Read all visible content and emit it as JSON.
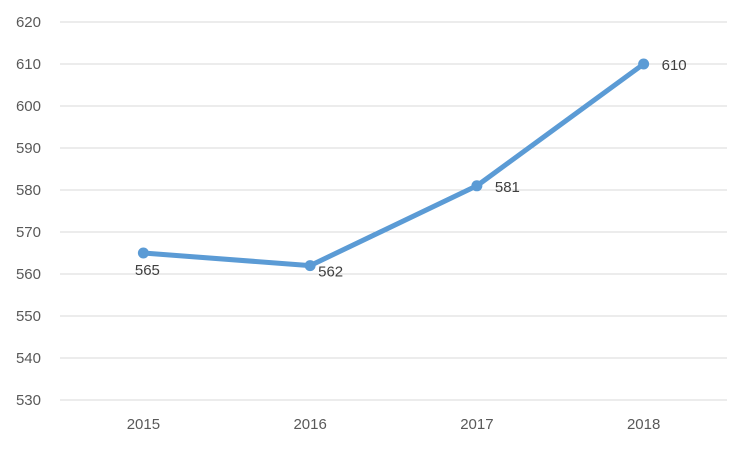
{
  "chart_data": {
    "type": "line",
    "title": "",
    "xlabel": "",
    "ylabel": "",
    "categories": [
      "2015",
      "2016",
      "2017",
      "2018"
    ],
    "series": [
      {
        "values": [
          565,
          562,
          581,
          610
        ],
        "color": "#5b9bd5",
        "data_labels": [
          "565",
          "562",
          "581",
          "610"
        ]
      }
    ],
    "ylim": [
      530,
      620
    ],
    "y_ticks": [
      530,
      540,
      550,
      560,
      570,
      580,
      590,
      600,
      610,
      620
    ],
    "y_tick_labels": [
      "530",
      "540",
      "550",
      "560",
      "570",
      "580",
      "590",
      "600",
      "610",
      "620"
    ],
    "grid": true,
    "legend": "none",
    "markers": true
  }
}
